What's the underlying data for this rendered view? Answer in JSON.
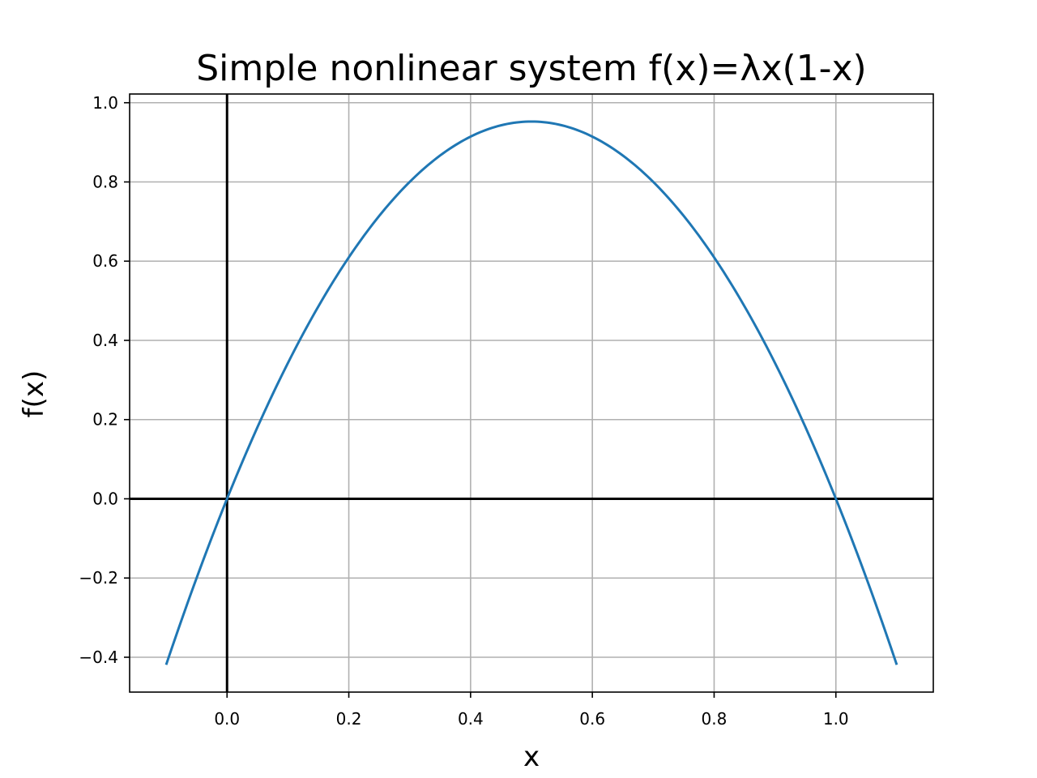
{
  "chart_data": {
    "type": "line",
    "title": "Simple nonlinear system f(x)=λx(1-x)",
    "xlabel": "x",
    "ylabel": "f(x)",
    "xlim": [
      -0.16,
      1.16
    ],
    "ylim": [
      -0.488,
      1.022
    ],
    "grid": true,
    "x_ticks": [
      0.0,
      0.2,
      0.4,
      0.6,
      0.8,
      1.0
    ],
    "x_tick_labels": [
      "0.0",
      "0.2",
      "0.4",
      "0.6",
      "0.8",
      "1.0"
    ],
    "y_ticks": [
      -0.4,
      -0.2,
      0.0,
      0.2,
      0.4,
      0.6,
      0.8,
      1.0
    ],
    "y_tick_labels": [
      "−0.4",
      "−0.2",
      "0.0",
      "0.2",
      "0.4",
      "0.6",
      "0.8",
      "1.0"
    ],
    "reference_lines": {
      "x": 0,
      "y": 0,
      "color": "#000000"
    },
    "series": [
      {
        "color": "#1f77b4",
        "lambda": 3.81,
        "x_range": [
          -0.1,
          1.1
        ]
      }
    ]
  }
}
